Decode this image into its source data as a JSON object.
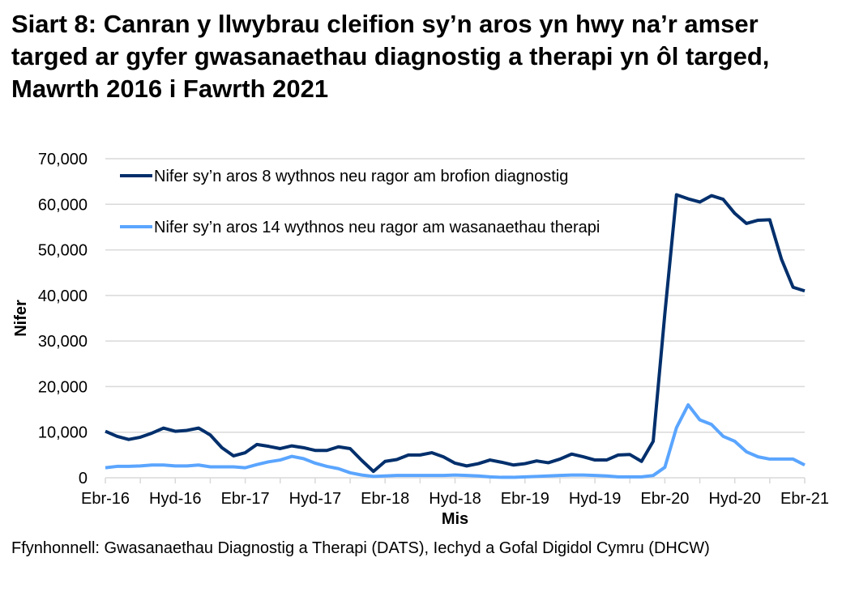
{
  "title": "Siart 8: Canran y llwybrau cleifion sy’n aros yn hwy na’r amser targed ar gyfer gwasanaethau diagnostig a therapi yn ôl targed, Mawrth 2016 i Fawrth 2021",
  "source": "Ffynhonnell: Gwasanaethau Diagnostig a Therapi (DATS), Iechyd a Gofal Digidol Cymru (DHCW)",
  "chart_data": {
    "type": "line",
    "xlabel": "Mis",
    "ylabel": "Nifer",
    "ylim": [
      0,
      70000
    ],
    "yticks": [
      "0",
      "10,000",
      "20,000",
      "30,000",
      "40,000",
      "50,000",
      "60,000",
      "70,000"
    ],
    "xtick_labels": [
      "Ebr-16",
      "Hyd-16",
      "Ebr-17",
      "Hyd-17",
      "Ebr-18",
      "Hyd-18",
      "Ebr-19",
      "Hyd-19",
      "Ebr-20",
      "Hyd-20",
      "Ebr-21"
    ],
    "x_start": "Ebr-16",
    "x_end": "Ebr-21",
    "x_interval": "monthly",
    "grid": "horizontal",
    "legend_placement": "top-left",
    "series": [
      {
        "name": "Nifer sy’n aros 8 wythnos neu ragor am brofion diagnostig",
        "color": "#002f6c",
        "values": [
          10200,
          9100,
          8400,
          8900,
          9800,
          10900,
          10200,
          10400,
          10900,
          9400,
          6600,
          4800,
          5500,
          7300,
          6900,
          6400,
          7000,
          6600,
          6000,
          6000,
          6800,
          6400,
          3800,
          1400,
          3600,
          4000,
          5000,
          5000,
          5500,
          4600,
          3200,
          2600,
          3100,
          3900,
          3400,
          2800,
          3100,
          3700,
          3300,
          4100,
          5200,
          4600,
          3900,
          3900,
          5000,
          5100,
          3600,
          8000,
          36000,
          62100,
          61200,
          60500,
          61900,
          61100,
          58000,
          55800,
          56500,
          56600,
          48000,
          41800,
          41000
        ]
      },
      {
        "name": "Nifer sy’n aros 14 wythnos neu ragor am wasanaethau therapi",
        "color": "#5aa5ff",
        "values": [
          2200,
          2500,
          2500,
          2600,
          2800,
          2800,
          2600,
          2600,
          2800,
          2400,
          2400,
          2400,
          2200,
          2900,
          3500,
          3900,
          4700,
          4200,
          3200,
          2500,
          2000,
          1100,
          600,
          300,
          400,
          500,
          500,
          500,
          500,
          500,
          600,
          500,
          400,
          200,
          100,
          100,
          200,
          300,
          400,
          500,
          600,
          600,
          500,
          400,
          200,
          200,
          200,
          500,
          2300,
          11000,
          16000,
          12700,
          11700,
          9100,
          8000,
          5700,
          4600,
          4100,
          4100,
          4100,
          2800
        ]
      }
    ]
  }
}
